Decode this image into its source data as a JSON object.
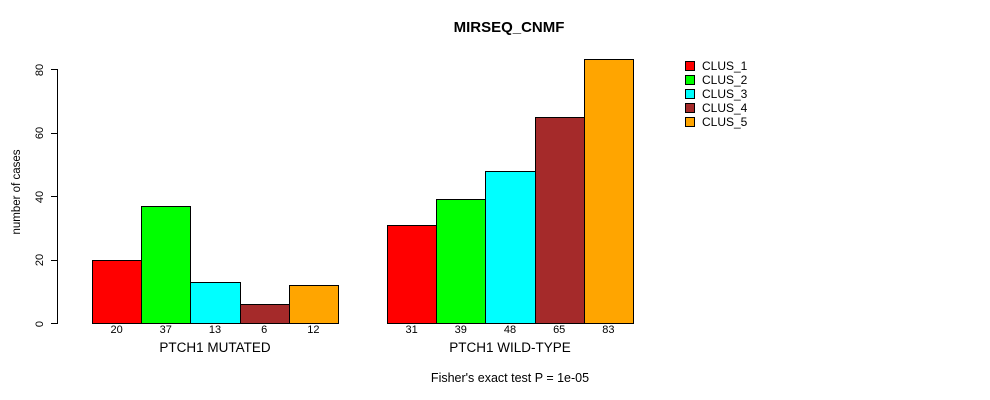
{
  "chart_data": {
    "type": "bar",
    "title": "MIRSEQ_CNMF",
    "ylabel": "number of cases",
    "xlabel": "",
    "categories": [
      "PTCH1 MUTATED",
      "PTCH1 WILD-TYPE"
    ],
    "series": [
      {
        "name": "CLUS_1",
        "color": "#FF0000",
        "values": [
          20,
          31
        ]
      },
      {
        "name": "CLUS_2",
        "color": "#00FF00",
        "values": [
          37,
          39
        ]
      },
      {
        "name": "CLUS_3",
        "color": "#00FFFF",
        "values": [
          13,
          48
        ]
      },
      {
        "name": "CLUS_4",
        "color": "#A52A2A",
        "values": [
          6,
          65
        ]
      },
      {
        "name": "CLUS_5",
        "color": "#FFA500",
        "values": [
          12,
          83
        ]
      }
    ],
    "bar_value_labels": [
      [
        "20",
        "37",
        "13",
        "6",
        "12"
      ],
      [
        "31",
        "39",
        "48",
        "65",
        "83"
      ]
    ],
    "yticks": [
      0,
      20,
      40,
      60,
      80
    ],
    "ylim": [
      0,
      85
    ],
    "grid": false,
    "legend_position": "right",
    "legend_entries": [
      "CLUS_1",
      "CLUS_2",
      "CLUS_3",
      "CLUS_4",
      "CLUS_5"
    ],
    "annotation": "Fisher's exact test P = 1e-05",
    "axis_color": "#000000",
    "bar_border_color": "#000000"
  }
}
